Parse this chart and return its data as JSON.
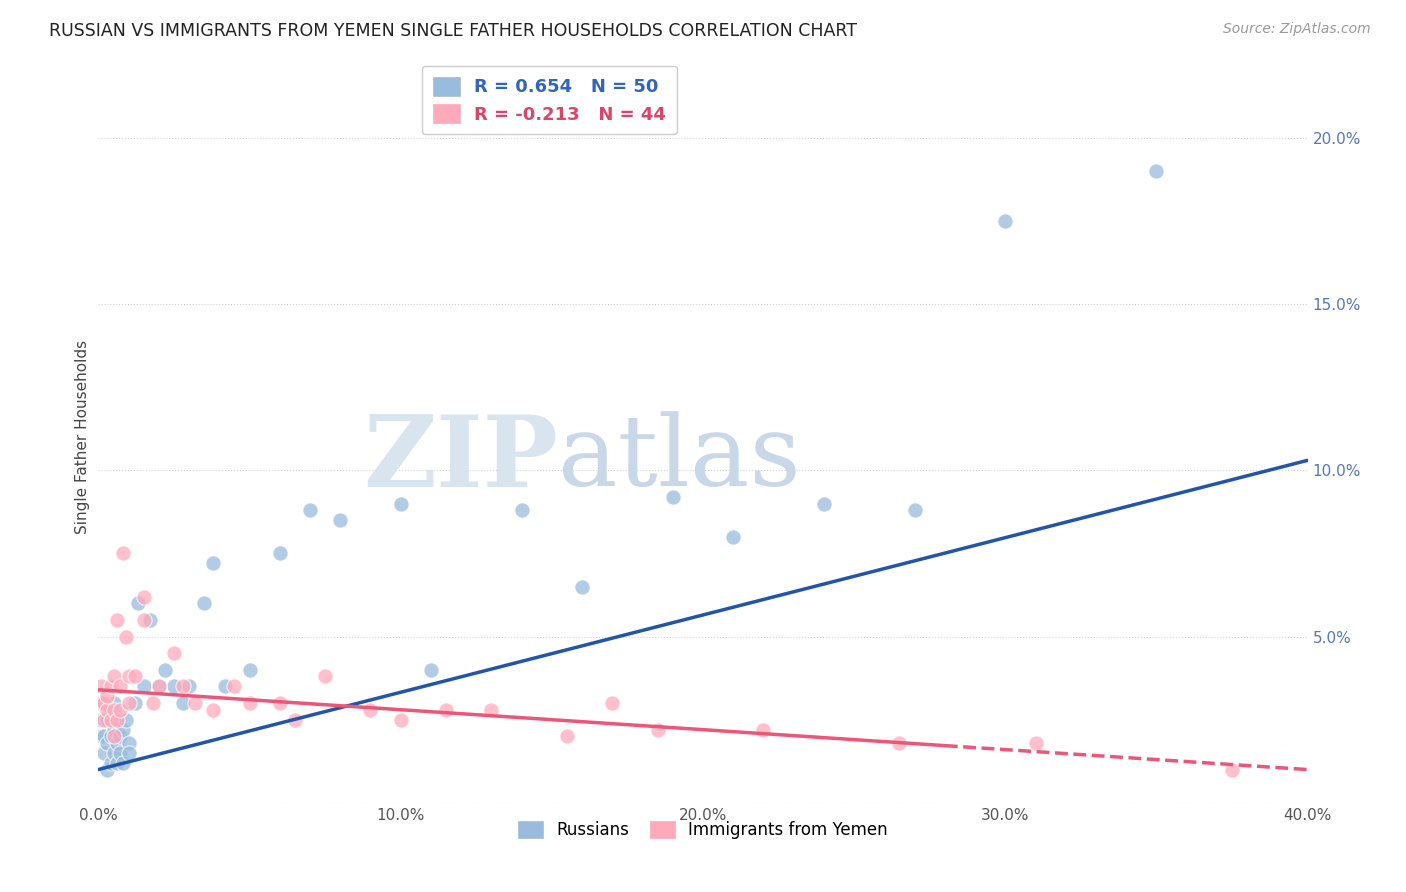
{
  "title": "RUSSIAN VS IMMIGRANTS FROM YEMEN SINGLE FATHER HOUSEHOLDS CORRELATION CHART",
  "source": "Source: ZipAtlas.com",
  "xlabel": "",
  "ylabel": "Single Father Households",
  "x_min": 0.0,
  "x_max": 0.4,
  "y_min": 0.0,
  "y_max": 0.22,
  "x_ticks": [
    0.0,
    0.1,
    0.2,
    0.3,
    0.4
  ],
  "x_tick_labels": [
    "0.0%",
    "10.0%",
    "20.0%",
    "30.0%",
    "40.0%"
  ],
  "y_ticks": [
    0.0,
    0.05,
    0.1,
    0.15,
    0.2
  ],
  "y_tick_labels": [
    "",
    "5.0%",
    "10.0%",
    "15.0%",
    "20.0%"
  ],
  "russian_color": "#99BBDD",
  "yemen_color": "#FFAABB",
  "russian_line_color": "#2255AA",
  "yemen_line_color": "#EE5577",
  "watermark_zip": "ZIP",
  "watermark_atlas": "atlas",
  "russian_R": 0.654,
  "russian_N": 50,
  "yemen_R": -0.213,
  "yemen_N": 44,
  "russian_x": [
    0.001,
    0.001,
    0.002,
    0.002,
    0.002,
    0.003,
    0.003,
    0.003,
    0.004,
    0.004,
    0.004,
    0.005,
    0.005,
    0.005,
    0.006,
    0.006,
    0.006,
    0.007,
    0.007,
    0.008,
    0.008,
    0.009,
    0.01,
    0.01,
    0.012,
    0.013,
    0.015,
    0.017,
    0.02,
    0.022,
    0.025,
    0.028,
    0.03,
    0.035,
    0.038,
    0.042,
    0.05,
    0.06,
    0.07,
    0.08,
    0.1,
    0.11,
    0.14,
    0.16,
    0.19,
    0.21,
    0.24,
    0.27,
    0.3,
    0.35
  ],
  "russian_y": [
    0.02,
    0.025,
    0.015,
    0.02,
    0.03,
    0.01,
    0.018,
    0.025,
    0.012,
    0.02,
    0.028,
    0.015,
    0.022,
    0.03,
    0.012,
    0.018,
    0.025,
    0.02,
    0.015,
    0.012,
    0.022,
    0.025,
    0.018,
    0.015,
    0.03,
    0.06,
    0.035,
    0.055,
    0.035,
    0.04,
    0.035,
    0.03,
    0.035,
    0.06,
    0.072,
    0.035,
    0.04,
    0.075,
    0.088,
    0.085,
    0.09,
    0.04,
    0.088,
    0.065,
    0.092,
    0.08,
    0.09,
    0.088,
    0.175,
    0.19
  ],
  "yemen_x": [
    0.001,
    0.001,
    0.002,
    0.002,
    0.003,
    0.003,
    0.004,
    0.004,
    0.005,
    0.005,
    0.005,
    0.006,
    0.006,
    0.007,
    0.007,
    0.008,
    0.009,
    0.01,
    0.01,
    0.012,
    0.015,
    0.015,
    0.018,
    0.02,
    0.025,
    0.028,
    0.032,
    0.038,
    0.045,
    0.05,
    0.06,
    0.065,
    0.075,
    0.09,
    0.1,
    0.115,
    0.13,
    0.155,
    0.17,
    0.185,
    0.22,
    0.265,
    0.31,
    0.375
  ],
  "yemen_y": [
    0.03,
    0.035,
    0.025,
    0.03,
    0.028,
    0.032,
    0.025,
    0.035,
    0.02,
    0.028,
    0.038,
    0.025,
    0.055,
    0.028,
    0.035,
    0.075,
    0.05,
    0.03,
    0.038,
    0.038,
    0.062,
    0.055,
    0.03,
    0.035,
    0.045,
    0.035,
    0.03,
    0.028,
    0.035,
    0.03,
    0.03,
    0.025,
    0.038,
    0.028,
    0.025,
    0.028,
    0.028,
    0.02,
    0.03,
    0.022,
    0.022,
    0.018,
    0.018,
    0.01
  ],
  "rus_line_x0": 0.0,
  "rus_line_y0": 0.01,
  "rus_line_x1": 0.4,
  "rus_line_y1": 0.103,
  "yem_line_x0": 0.0,
  "yem_line_y0": 0.034,
  "yem_line_x1": 0.4,
  "yem_line_y1": 0.01
}
